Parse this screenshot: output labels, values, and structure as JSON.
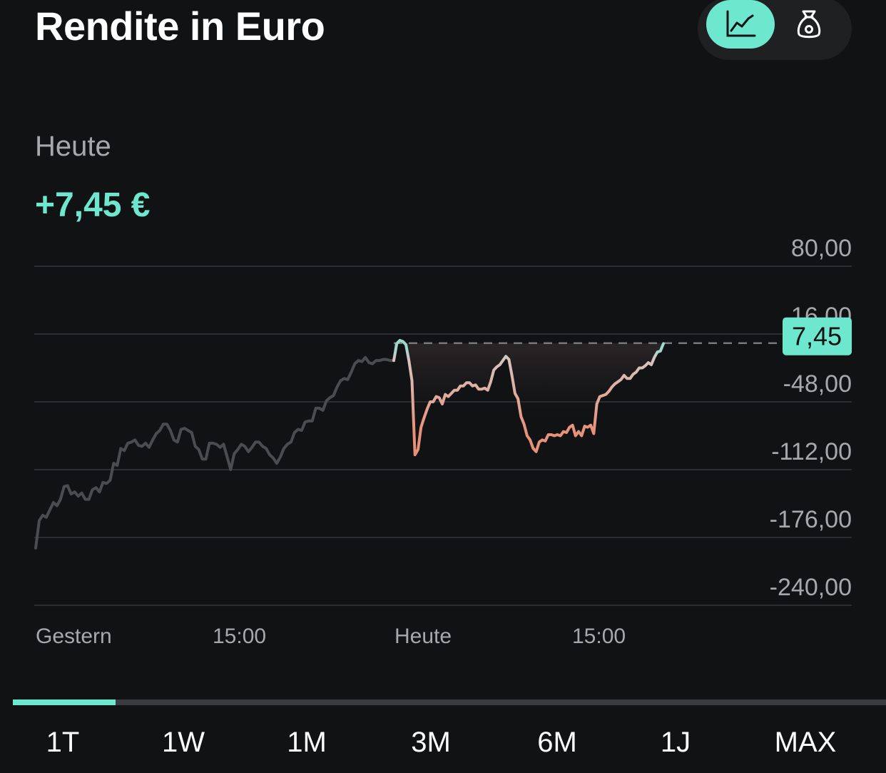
{
  "header": {
    "title": "Rendite in Euro"
  },
  "view_toggle": [
    {
      "name": "chart-view",
      "icon": "line-chart-icon",
      "active": true
    },
    {
      "name": "money-bag-view",
      "icon": "money-bag-icon",
      "active": false
    }
  ],
  "summary": {
    "period_label": "Heute",
    "value": "+7,45 €"
  },
  "colors": {
    "accent": "#6ee7cf",
    "negative": "#e8917a",
    "background": "#111214",
    "muted_line": "#4b4c4f"
  },
  "chart_data": {
    "type": "line",
    "ylim": [
      -240,
      80
    ],
    "yticks": [
      "80,00",
      "16,00",
      "-48,00",
      "-112,00",
      "-176,00",
      "-240,00"
    ],
    "xtick_labels": [
      "Gestern",
      "15:00",
      "Heute",
      "15:00"
    ],
    "current_value_label": "7,45",
    "reference_line": 7.45,
    "grid": true,
    "series": [
      {
        "segment": "gestern",
        "values": [
          -186,
          -160,
          -155,
          -157,
          -150,
          -143,
          -146,
          -140,
          -128,
          -127,
          -135,
          -133,
          -137,
          -134,
          -140,
          -140,
          -131,
          -129,
          -133,
          -124,
          -125,
          -122,
          -106,
          -108,
          -92,
          -94,
          -87,
          -86,
          -84,
          -89,
          -90,
          -87,
          -91,
          -84,
          -78,
          -75,
          -69,
          -69,
          -75,
          -84,
          -86,
          -74,
          -73,
          -75,
          -77,
          -90,
          -93,
          -102,
          -102,
          -87,
          -87,
          -88,
          -91,
          -88,
          -100,
          -112,
          -97,
          -93,
          -88,
          -90,
          -95,
          -91,
          -86,
          -86,
          -90,
          -92,
          -98,
          -101,
          -106,
          -100,
          -92,
          -88,
          -86,
          -77,
          -74,
          -75,
          -67,
          -66,
          -66,
          -54,
          -54,
          -56,
          -47,
          -44,
          -42,
          -34,
          -28,
          -26,
          -27,
          -20,
          -12,
          -9,
          -10,
          -6,
          -11,
          -12,
          -9,
          -9,
          -8,
          -8,
          -9,
          -9
        ]
      },
      {
        "segment": "heute",
        "values": [
          -9,
          7,
          10,
          9,
          6,
          -9,
          -28,
          -98,
          -93,
          -72,
          -63,
          -55,
          -48,
          -48,
          -43,
          -44,
          -50,
          -41,
          -43,
          -40,
          -37,
          -37,
          -33,
          -33,
          -30,
          -30,
          -33,
          -32,
          -36,
          -36,
          -35,
          -37,
          -29,
          -18,
          -15,
          -13,
          -9,
          -5,
          -8,
          -23,
          -40,
          -45,
          -62,
          -69,
          -80,
          -84,
          -92,
          -95,
          -86,
          -84,
          -85,
          -79,
          -79,
          -80,
          -79,
          -80,
          -76,
          -77,
          -72,
          -70,
          -80,
          -76,
          -80,
          -71,
          -72,
          -70,
          -78,
          -50,
          -43,
          -42,
          -41,
          -38,
          -34,
          -31,
          -29,
          -27,
          -23,
          -26,
          -26,
          -22,
          -20,
          -16,
          -16,
          -14,
          -11,
          -13,
          -6,
          -1,
          0,
          7
        ]
      }
    ]
  },
  "ranges": {
    "tabs": [
      "1T",
      "1W",
      "1M",
      "3M",
      "6M",
      "1J",
      "MAX"
    ],
    "active_index": 0
  }
}
